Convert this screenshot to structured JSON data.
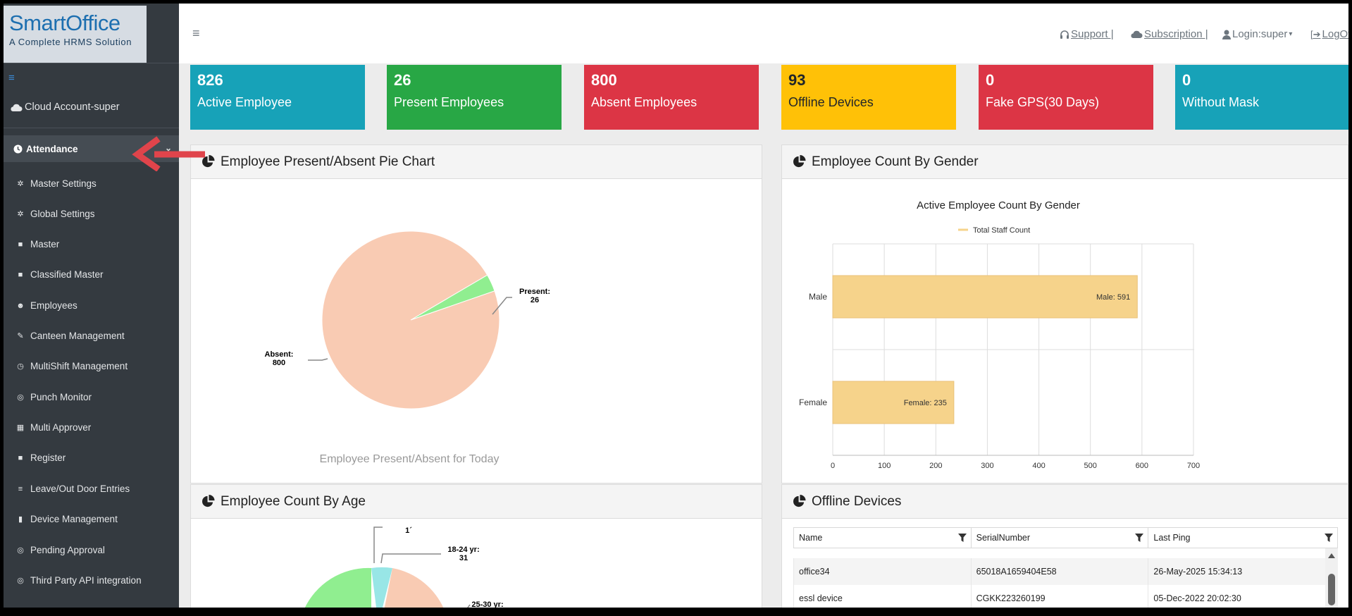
{
  "logo": {
    "title": "SmartOffice",
    "subtitle": "A Complete HRMS Solution"
  },
  "sidebar": {
    "cloud_account": "Cloud Account-super",
    "active_section": "Attendance",
    "items": [
      {
        "label": "Master Settings",
        "icon": "gear-icon"
      },
      {
        "label": "Global Settings",
        "icon": "gear-icon"
      },
      {
        "label": "Master",
        "icon": "square-icon"
      },
      {
        "label": "Classified Master",
        "icon": "square-icon"
      },
      {
        "label": "Employees",
        "icon": "users-icon"
      },
      {
        "label": "Canteen Management",
        "icon": "wrench-icon"
      },
      {
        "label": "MultiShift Management",
        "icon": "clock-icon"
      },
      {
        "label": "Punch Monitor",
        "icon": "circle-icon"
      },
      {
        "label": "Multi Approver",
        "icon": "grid-icon"
      },
      {
        "label": "Register",
        "icon": "square-icon"
      },
      {
        "label": "Leave/Out Door Entries",
        "icon": "list-icon"
      },
      {
        "label": "Device Management",
        "icon": "device-icon"
      },
      {
        "label": "Pending Approval",
        "icon": "circle-icon"
      },
      {
        "label": "Third Party API integration",
        "icon": "circle-icon"
      }
    ]
  },
  "topbar": {
    "support": "Support |",
    "subscription": "Subscription |",
    "login": "Login:super",
    "logout": "LogOff"
  },
  "stats": [
    {
      "value": "826",
      "label": "Active Employee",
      "color": "#17a2b8"
    },
    {
      "value": "26",
      "label": "Present Employees",
      "color": "#28a745"
    },
    {
      "value": "800",
      "label": "Absent Employees",
      "color": "#dc3545"
    },
    {
      "value": "93",
      "label": "Offline Devices",
      "color": "#ffc107"
    },
    {
      "value": "0",
      "label": "Fake GPS(30 Days)",
      "color": "#dc3545"
    },
    {
      "value": "0",
      "label": "Without Mask",
      "color": "#17a2b8"
    }
  ],
  "panels": {
    "pie": {
      "title": "Employee Present/Absent Pie Chart",
      "caption": "Employee Present/Absent for Today"
    },
    "gender": {
      "title": "Employee Count By Gender"
    },
    "age": {
      "title": "Employee Count By Age"
    },
    "offline": {
      "title": "Offline Devices"
    }
  },
  "chart_data": [
    {
      "type": "pie",
      "title": "Employee Present/Absent for Today",
      "slices": [
        {
          "label": "Present",
          "value": 26,
          "color": "#90ee90"
        },
        {
          "label": "Absent",
          "value": 800,
          "color": "#f9cbb3"
        }
      ]
    },
    {
      "type": "bar",
      "orientation": "horizontal",
      "title": "Active Employee Count By Gender",
      "categories": [
        "Male",
        "Female"
      ],
      "series": [
        {
          "name": "Total Staff Count",
          "values": [
            591,
            235
          ],
          "color": "#f6d38b"
        }
      ],
      "xlim": [
        0,
        700
      ],
      "xticks": [
        0,
        100,
        200,
        300,
        400,
        500,
        600,
        700
      ],
      "grid": true,
      "legend": "top"
    },
    {
      "type": "pie",
      "visible_labels": [
        {
          "label": "18-24 yr",
          "value": 31
        },
        {
          "label": "25-30 yr",
          "value": null
        }
      ]
    }
  ],
  "offline_table": {
    "columns": [
      "Name",
      "SerialNumber",
      "Last Ping"
    ],
    "rows": [
      [
        "office34",
        "65018A1659404E58",
        "26-May-2025 15:34:13"
      ],
      [
        "essl device",
        "CGKK223260199",
        "05-Dec-2022 20:02:30"
      ]
    ]
  }
}
